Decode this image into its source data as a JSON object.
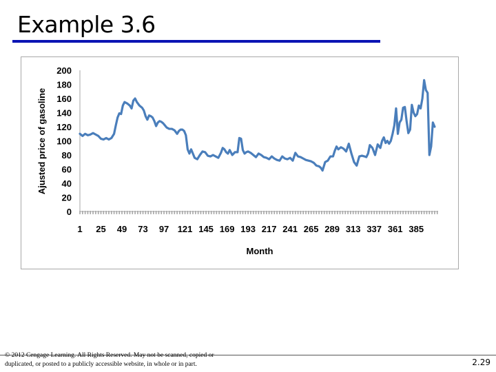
{
  "slide": {
    "title": "Example 3.6",
    "copyright": "© 2012 Cengage Learning. All Rights Reserved. May not be scanned, copied or duplicated, or posted to a publicly accessible website, in whole or in part.",
    "page_number": "2.29"
  },
  "colors": {
    "title_rule": "#0a14b4",
    "series_line": "#4a7ebb",
    "axis_line": "#a6a6a6"
  },
  "chart_data": {
    "type": "line",
    "title": "",
    "xlabel": "Month",
    "ylabel": "Ajusted price of gasoline",
    "xlim": [
      1,
      410
    ],
    "ylim": [
      0,
      200
    ],
    "y_ticks": [
      0,
      20,
      40,
      60,
      80,
      100,
      120,
      140,
      160,
      180,
      200
    ],
    "x_tick_labels": [
      "1",
      "25",
      "49",
      "73",
      "97",
      "121",
      "145",
      "169",
      "193",
      "217",
      "241",
      "265",
      "289",
      "313",
      "337",
      "361",
      "385"
    ],
    "legend": "none",
    "grid": false,
    "series": [
      {
        "name": "Adjusted price of gasoline",
        "x": [
          1,
          4,
          7,
          10,
          13,
          16,
          19,
          22,
          25,
          28,
          31,
          34,
          37,
          40,
          42,
          44,
          46,
          48,
          50,
          52,
          55,
          58,
          60,
          62,
          64,
          66,
          69,
          72,
          74,
          76,
          78,
          80,
          82,
          84,
          86,
          88,
          90,
          92,
          94,
          96,
          98,
          100,
          103,
          106,
          109,
          112,
          114,
          116,
          118,
          120,
          122,
          124,
          126,
          128,
          130,
          132,
          135,
          138,
          141,
          144,
          147,
          150,
          153,
          156,
          159,
          162,
          164,
          166,
          168,
          170,
          172,
          175,
          178,
          181,
          183,
          185,
          187,
          189,
          191,
          193,
          196,
          199,
          202,
          205,
          208,
          211,
          214,
          217,
          220,
          223,
          226,
          229,
          232,
          235,
          238,
          241,
          244,
          247,
          250,
          253,
          256,
          259,
          262,
          265,
          268,
          271,
          274,
          276,
          278,
          281,
          284,
          287,
          290,
          292,
          294,
          296,
          299,
          302,
          305,
          308,
          311,
          314,
          317,
          320,
          323,
          326,
          328,
          330,
          332,
          335,
          338,
          341,
          344,
          346,
          348,
          350,
          352,
          354,
          356,
          358,
          360,
          362,
          364,
          366,
          368,
          370,
          372,
          374,
          376,
          378,
          380,
          382,
          384,
          386,
          388,
          390,
          392,
          394,
          396,
          398,
          400,
          402,
          404,
          406
        ],
        "values": [
          110,
          107,
          110,
          108,
          109,
          111,
          109,
          107,
          103,
          102,
          104,
          102,
          104,
          110,
          122,
          133,
          139,
          138,
          150,
          155,
          153,
          150,
          146,
          157,
          160,
          155,
          150,
          147,
          143,
          135,
          130,
          136,
          135,
          133,
          128,
          121,
          126,
          128,
          127,
          125,
          122,
          119,
          117,
          117,
          115,
          110,
          114,
          116,
          116,
          114,
          108,
          88,
          82,
          88,
          82,
          76,
          74,
          80,
          85,
          84,
          79,
          78,
          80,
          78,
          76,
          83,
          90,
          88,
          84,
          82,
          87,
          80,
          84,
          84,
          104,
          103,
          87,
          82,
          84,
          85,
          83,
          80,
          77,
          82,
          80,
          77,
          76,
          74,
          78,
          75,
          73,
          72,
          78,
          75,
          74,
          76,
          72,
          83,
          78,
          77,
          75,
          73,
          72,
          71,
          69,
          65,
          64,
          62,
          58,
          70,
          72,
          78,
          78,
          86,
          92,
          88,
          91,
          89,
          85,
          96,
          82,
          70,
          65,
          78,
          79,
          78,
          77,
          82,
          94,
          90,
          80,
          95,
          90,
          100,
          105,
          97,
          100,
          96,
          100,
          110,
          122,
          146,
          110,
          126,
          130,
          147,
          148,
          128,
          111,
          116,
          151,
          140,
          135,
          138,
          150,
          146,
          160,
          186,
          172,
          168,
          80,
          92,
          126,
          120
        ]
      }
    ]
  }
}
